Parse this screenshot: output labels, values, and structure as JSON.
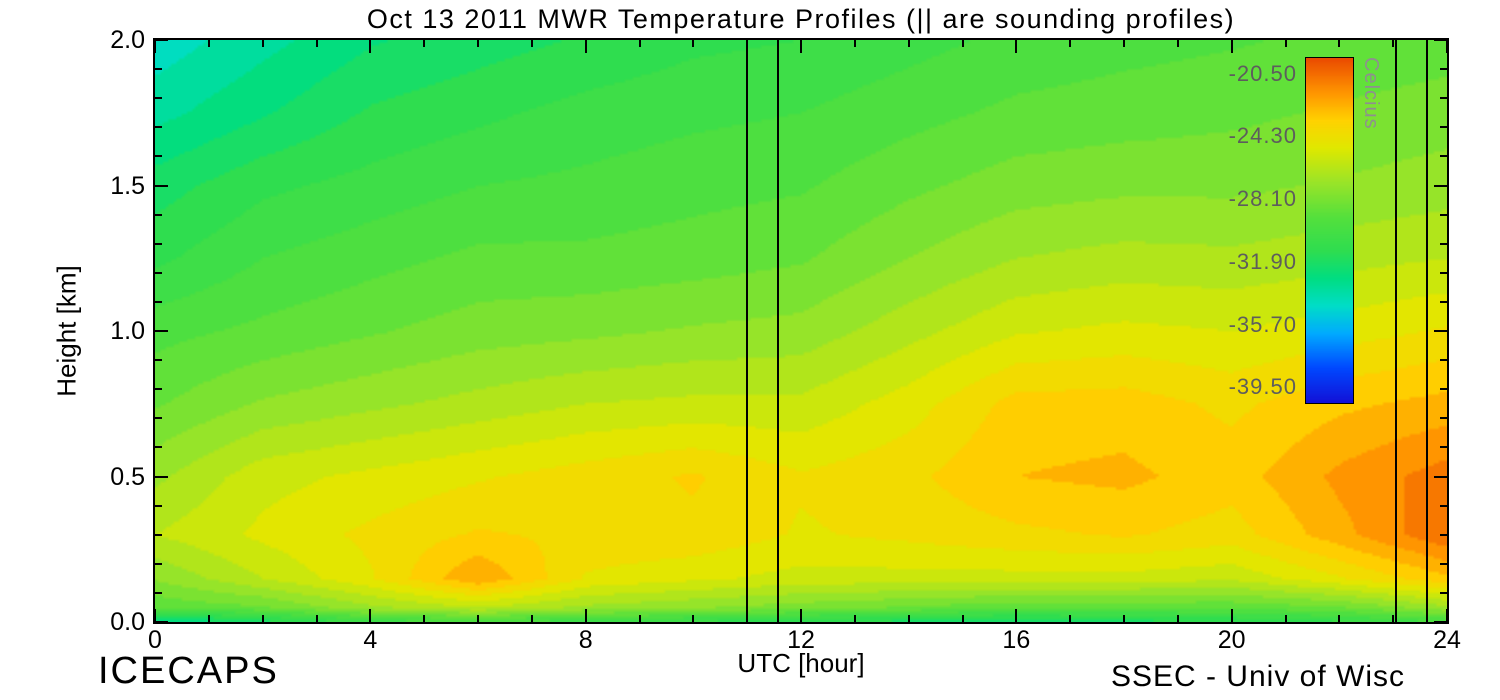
{
  "title": "Oct 13 2011 MWR Temperature Profiles (|| are sounding profiles)",
  "xlabel": "UTC [hour]",
  "ylabel": "Height [km]",
  "footer_left": "ICECAPS",
  "footer_right": "SSEC - Univ of Wisc",
  "colorbar": {
    "title": "Celcius",
    "labels": [
      "-20.50",
      "-24.30",
      "-28.10",
      "-31.90",
      "-35.70",
      "-39.50"
    ],
    "min": -40.45,
    "max": -19.55,
    "label_color": "#5d5d5d"
  },
  "chart_data": {
    "type": "heatmap",
    "title": "Oct 13 2011 MWR Temperature Profiles",
    "xlabel": "UTC [hour]",
    "ylabel": "Height [km]",
    "value_unit": "Celcius",
    "xlim": [
      0,
      24
    ],
    "ylim": [
      0,
      2
    ],
    "x": [
      0,
      2,
      4,
      6,
      8,
      10,
      12,
      14,
      16,
      18,
      20,
      22,
      24
    ],
    "y": [
      0.0,
      0.05,
      0.15,
      0.3,
      0.5,
      0.75,
      1.0,
      1.25,
      1.5,
      1.75,
      2.0
    ],
    "values": [
      [
        -33.5,
        -29.0,
        -27.5,
        -26.0,
        -27.0,
        -28.5,
        -29.5,
        -31.0,
        -32.0,
        -33.5,
        -34.5
      ],
      [
        -32.0,
        -28.5,
        -26.0,
        -25.0,
        -25.5,
        -27.5,
        -29.0,
        -30.0,
        -31.0,
        -32.5,
        -33.5
      ],
      [
        -30.5,
        -27.0,
        -24.5,
        -24.2,
        -25.0,
        -27.0,
        -28.5,
        -29.5,
        -30.5,
        -31.5,
        -32.5
      ],
      [
        -30.0,
        -26.0,
        -22.0,
        -23.5,
        -24.5,
        -26.5,
        -28.0,
        -29.0,
        -30.0,
        -31.0,
        -32.0
      ],
      [
        -30.5,
        -27.0,
        -24.5,
        -23.8,
        -24.0,
        -26.0,
        -27.8,
        -29.0,
        -29.8,
        -30.5,
        -31.5
      ],
      [
        -31.0,
        -27.5,
        -25.0,
        -23.8,
        -23.5,
        -25.8,
        -27.5,
        -28.8,
        -29.5,
        -30.2,
        -31.0
      ],
      [
        -31.5,
        -28.0,
        -25.5,
        -24.5,
        -24.3,
        -25.8,
        -27.3,
        -28.5,
        -29.3,
        -30.0,
        -30.8
      ],
      [
        -32.0,
        -28.5,
        -25.5,
        -24.2,
        -23.8,
        -24.8,
        -26.3,
        -27.6,
        -28.6,
        -29.5,
        -30.3
      ],
      [
        -32.5,
        -29.0,
        -25.5,
        -23.8,
        -22.8,
        -23.3,
        -25.3,
        -26.8,
        -28.0,
        -29.0,
        -29.8
      ],
      [
        -32.0,
        -29.0,
        -25.5,
        -23.5,
        -22.6,
        -23.2,
        -25.0,
        -26.5,
        -27.8,
        -28.8,
        -29.5
      ],
      [
        -31.5,
        -29.0,
        -25.8,
        -24.0,
        -23.2,
        -23.8,
        -25.2,
        -26.6,
        -27.8,
        -28.6,
        -29.3
      ],
      [
        -31.0,
        -28.5,
        -24.5,
        -22.3,
        -21.8,
        -23.0,
        -24.8,
        -26.3,
        -27.5,
        -28.3,
        -29.0
      ],
      [
        -30.0,
        -27.0,
        -23.0,
        -20.5,
        -20.8,
        -22.5,
        -24.3,
        -26.0,
        -27.2,
        -28.0,
        -28.8
      ]
    ],
    "x_ticks": [
      {
        "v": 0,
        "label": "0"
      },
      {
        "v": 4,
        "label": "4"
      },
      {
        "v": 8,
        "label": "8"
      },
      {
        "v": 12,
        "label": "12"
      },
      {
        "v": 16,
        "label": "16"
      },
      {
        "v": 20,
        "label": "20"
      },
      {
        "v": 24,
        "label": "24"
      }
    ],
    "y_ticks": [
      {
        "v": 0.0,
        "label": "0.0"
      },
      {
        "v": 0.5,
        "label": "0.5"
      },
      {
        "v": 1.0,
        "label": "1.0"
      },
      {
        "v": 1.5,
        "label": "1.5"
      },
      {
        "v": 2.0,
        "label": "2.0"
      }
    ],
    "sounding_hours": [
      11.0,
      11.58,
      23.05,
      23.62
    ],
    "color_min": -40.45,
    "color_max": -19.55,
    "colormap": [
      [
        0.0,
        "#1212d8"
      ],
      [
        0.1,
        "#0048ff"
      ],
      [
        0.2,
        "#00aaff"
      ],
      [
        0.28,
        "#00ddc8"
      ],
      [
        0.36,
        "#00dd82"
      ],
      [
        0.44,
        "#2edd50"
      ],
      [
        0.54,
        "#55e03c"
      ],
      [
        0.64,
        "#9ae428"
      ],
      [
        0.74,
        "#e0e800"
      ],
      [
        0.82,
        "#ffd200"
      ],
      [
        0.9,
        "#ff9600"
      ],
      [
        1.0,
        "#eb4b00"
      ]
    ]
  }
}
